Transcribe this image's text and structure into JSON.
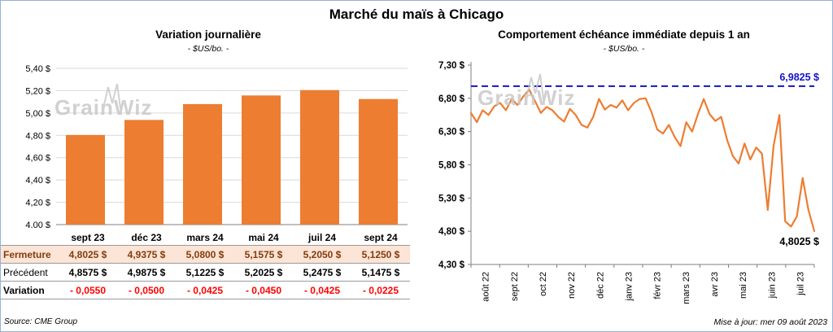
{
  "page": {
    "title": "Marché du maïs à Chicago",
    "source": "Source: CME Group",
    "updated": "Mise à jour: mer 09 août 2023",
    "watermark": "GrainWiz",
    "colors": {
      "accent_orange": "#ED7D31",
      "gridline": "#D9D9D9",
      "axis_gray": "#7F7F7F",
      "highlight_row_bg": "#FCE4D6",
      "highlight_row_text": "#843C0C",
      "negative_red": "#FF0000",
      "max_line_blue": "#1414C8",
      "frame_border": "#95B3D7",
      "watermark_gray": "#C9C9C9"
    }
  },
  "chart_data": [
    {
      "type": "bar",
      "title": "Variation journalière",
      "subtitle": "- $US/bo. -",
      "categories": [
        "sept 23",
        "déc 23",
        "mars 24",
        "mai 24",
        "juil 24",
        "sept 24"
      ],
      "values": [
        4.8025,
        4.9375,
        5.08,
        5.1575,
        5.205,
        5.125
      ],
      "ylim": [
        4.0,
        5.4
      ],
      "grid": true,
      "y_ticks": [
        {
          "value": 5.4,
          "label": "5,40 $"
        },
        {
          "value": 5.2,
          "label": "5,20 $"
        },
        {
          "value": 5.0,
          "label": "5,00 $"
        },
        {
          "value": 4.8,
          "label": "4,80 $"
        },
        {
          "value": 4.6,
          "label": "4,60 $"
        },
        {
          "value": 4.4,
          "label": "4,40 $"
        },
        {
          "value": 4.2,
          "label": "4,20 $"
        },
        {
          "value": 4.0,
          "label": "4,00 $"
        }
      ]
    },
    {
      "type": "line",
      "title": "Comportement échéance immédiate depuis 1 an",
      "subtitle": "- $US/bo. -",
      "x_labels": [
        "août 22",
        "sept 22",
        "oct 22",
        "nov 22",
        "déc 22",
        "janv 23",
        "févr 23",
        "mars 23",
        "avr 23",
        "mai 23",
        "juin 23",
        "juil 23"
      ],
      "ylim": [
        4.3,
        7.3
      ],
      "grid": false,
      "y_ticks": [
        {
          "value": 7.3,
          "label": "7,30 $"
        },
        {
          "value": 6.8,
          "label": "6,80 $"
        },
        {
          "value": 6.3,
          "label": "6,30 $"
        },
        {
          "value": 5.8,
          "label": "5,80 $"
        },
        {
          "value": 5.3,
          "label": "5,30 $"
        },
        {
          "value": 4.8,
          "label": "4,80 $"
        },
        {
          "value": 4.3,
          "label": "4,30 $"
        }
      ],
      "max_line": {
        "value": 6.9825,
        "label": "6,9825 $"
      },
      "last_point": {
        "value": 4.8025,
        "label": "4,8025 $"
      },
      "values": [
        6.58,
        6.44,
        6.62,
        6.55,
        6.68,
        6.73,
        6.62,
        6.79,
        6.7,
        6.83,
        6.93,
        6.76,
        6.58,
        6.67,
        6.62,
        6.52,
        6.45,
        6.64,
        6.55,
        6.4,
        6.36,
        6.52,
        6.79,
        6.63,
        6.7,
        6.66,
        6.77,
        6.62,
        6.73,
        6.79,
        6.8,
        6.6,
        6.33,
        6.27,
        6.4,
        6.22,
        6.08,
        6.44,
        6.3,
        6.56,
        6.79,
        6.56,
        6.46,
        6.52,
        6.18,
        5.93,
        5.82,
        6.12,
        5.88,
        6.06,
        5.97,
        5.12,
        6.08,
        6.55,
        4.95,
        4.87,
        5.02,
        5.6,
        5.12,
        4.8025
      ]
    }
  ],
  "table": {
    "rows": [
      {
        "label": "Fermeture",
        "style": "highlight",
        "values": [
          "4,8025 $",
          "4,9375 $",
          "5,0800 $",
          "5,1575 $",
          "5,2050 $",
          "5,1250 $"
        ]
      },
      {
        "label": "Précédent",
        "style": "default",
        "values": [
          "4,8575 $",
          "4,9875 $",
          "5,1225 $",
          "5,2025 $",
          "5,2475 $",
          "5,1475 $"
        ]
      },
      {
        "label": "Variation",
        "style": "negative",
        "values": [
          "- 0,0550",
          "- 0,0500",
          "- 0,0425",
          "- 0,0450",
          "- 0,0425",
          "- 0,0225"
        ]
      }
    ]
  }
}
